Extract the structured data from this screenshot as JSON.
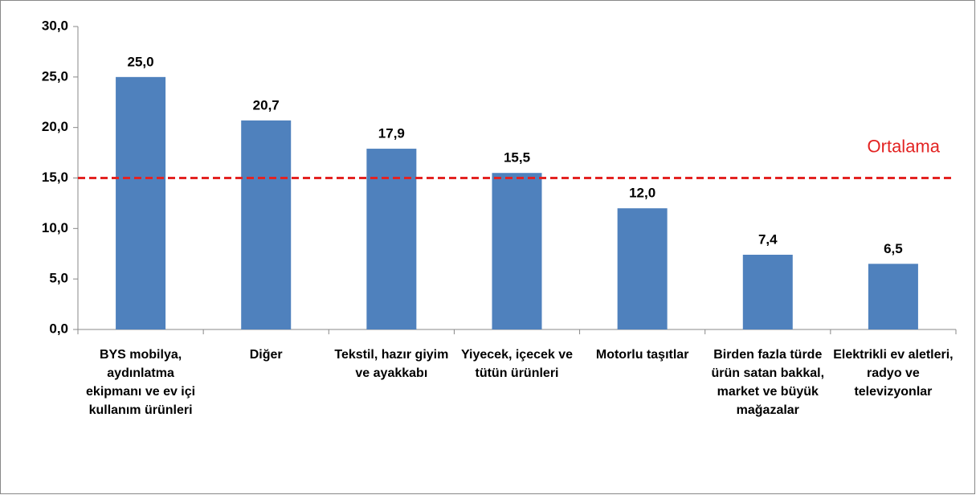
{
  "chart_data": {
    "type": "bar",
    "categories": [
      "BYS mobilya, aydınlatma ekipmanı ve ev içi kullanım ürünleri",
      "Diğer",
      "Tekstil, hazır giyim ve ayakkabı",
      "Yiyecek, içecek ve tütün ürünleri",
      "Motorlu taşıtlar",
      "Birden fazla türde ürün satan bakkal, market ve büyük mağazalar",
      "Elektrikli ev aletleri, radyo ve televizyonlar"
    ],
    "values": [
      25.0,
      20.7,
      17.9,
      15.5,
      12.0,
      7.4,
      6.5
    ],
    "value_labels": [
      "25,0",
      "20,7",
      "17,9",
      "15,5",
      "12,0",
      "7,4",
      "6,5"
    ],
    "color": "#4f81bd",
    "ylim": [
      0,
      30
    ],
    "yticks": [
      {
        "value": 0,
        "label": "0,0"
      },
      {
        "value": 5,
        "label": "5,0"
      },
      {
        "value": 10,
        "label": "10,0"
      },
      {
        "value": 15,
        "label": "15,0"
      },
      {
        "value": 20,
        "label": "20,0"
      },
      {
        "value": 25,
        "label": "25,0"
      },
      {
        "value": 30,
        "label": "30,0"
      }
    ],
    "grid": false,
    "reference_line": {
      "value": 15,
      "label": "Ortalama",
      "color": "#e32322"
    }
  }
}
